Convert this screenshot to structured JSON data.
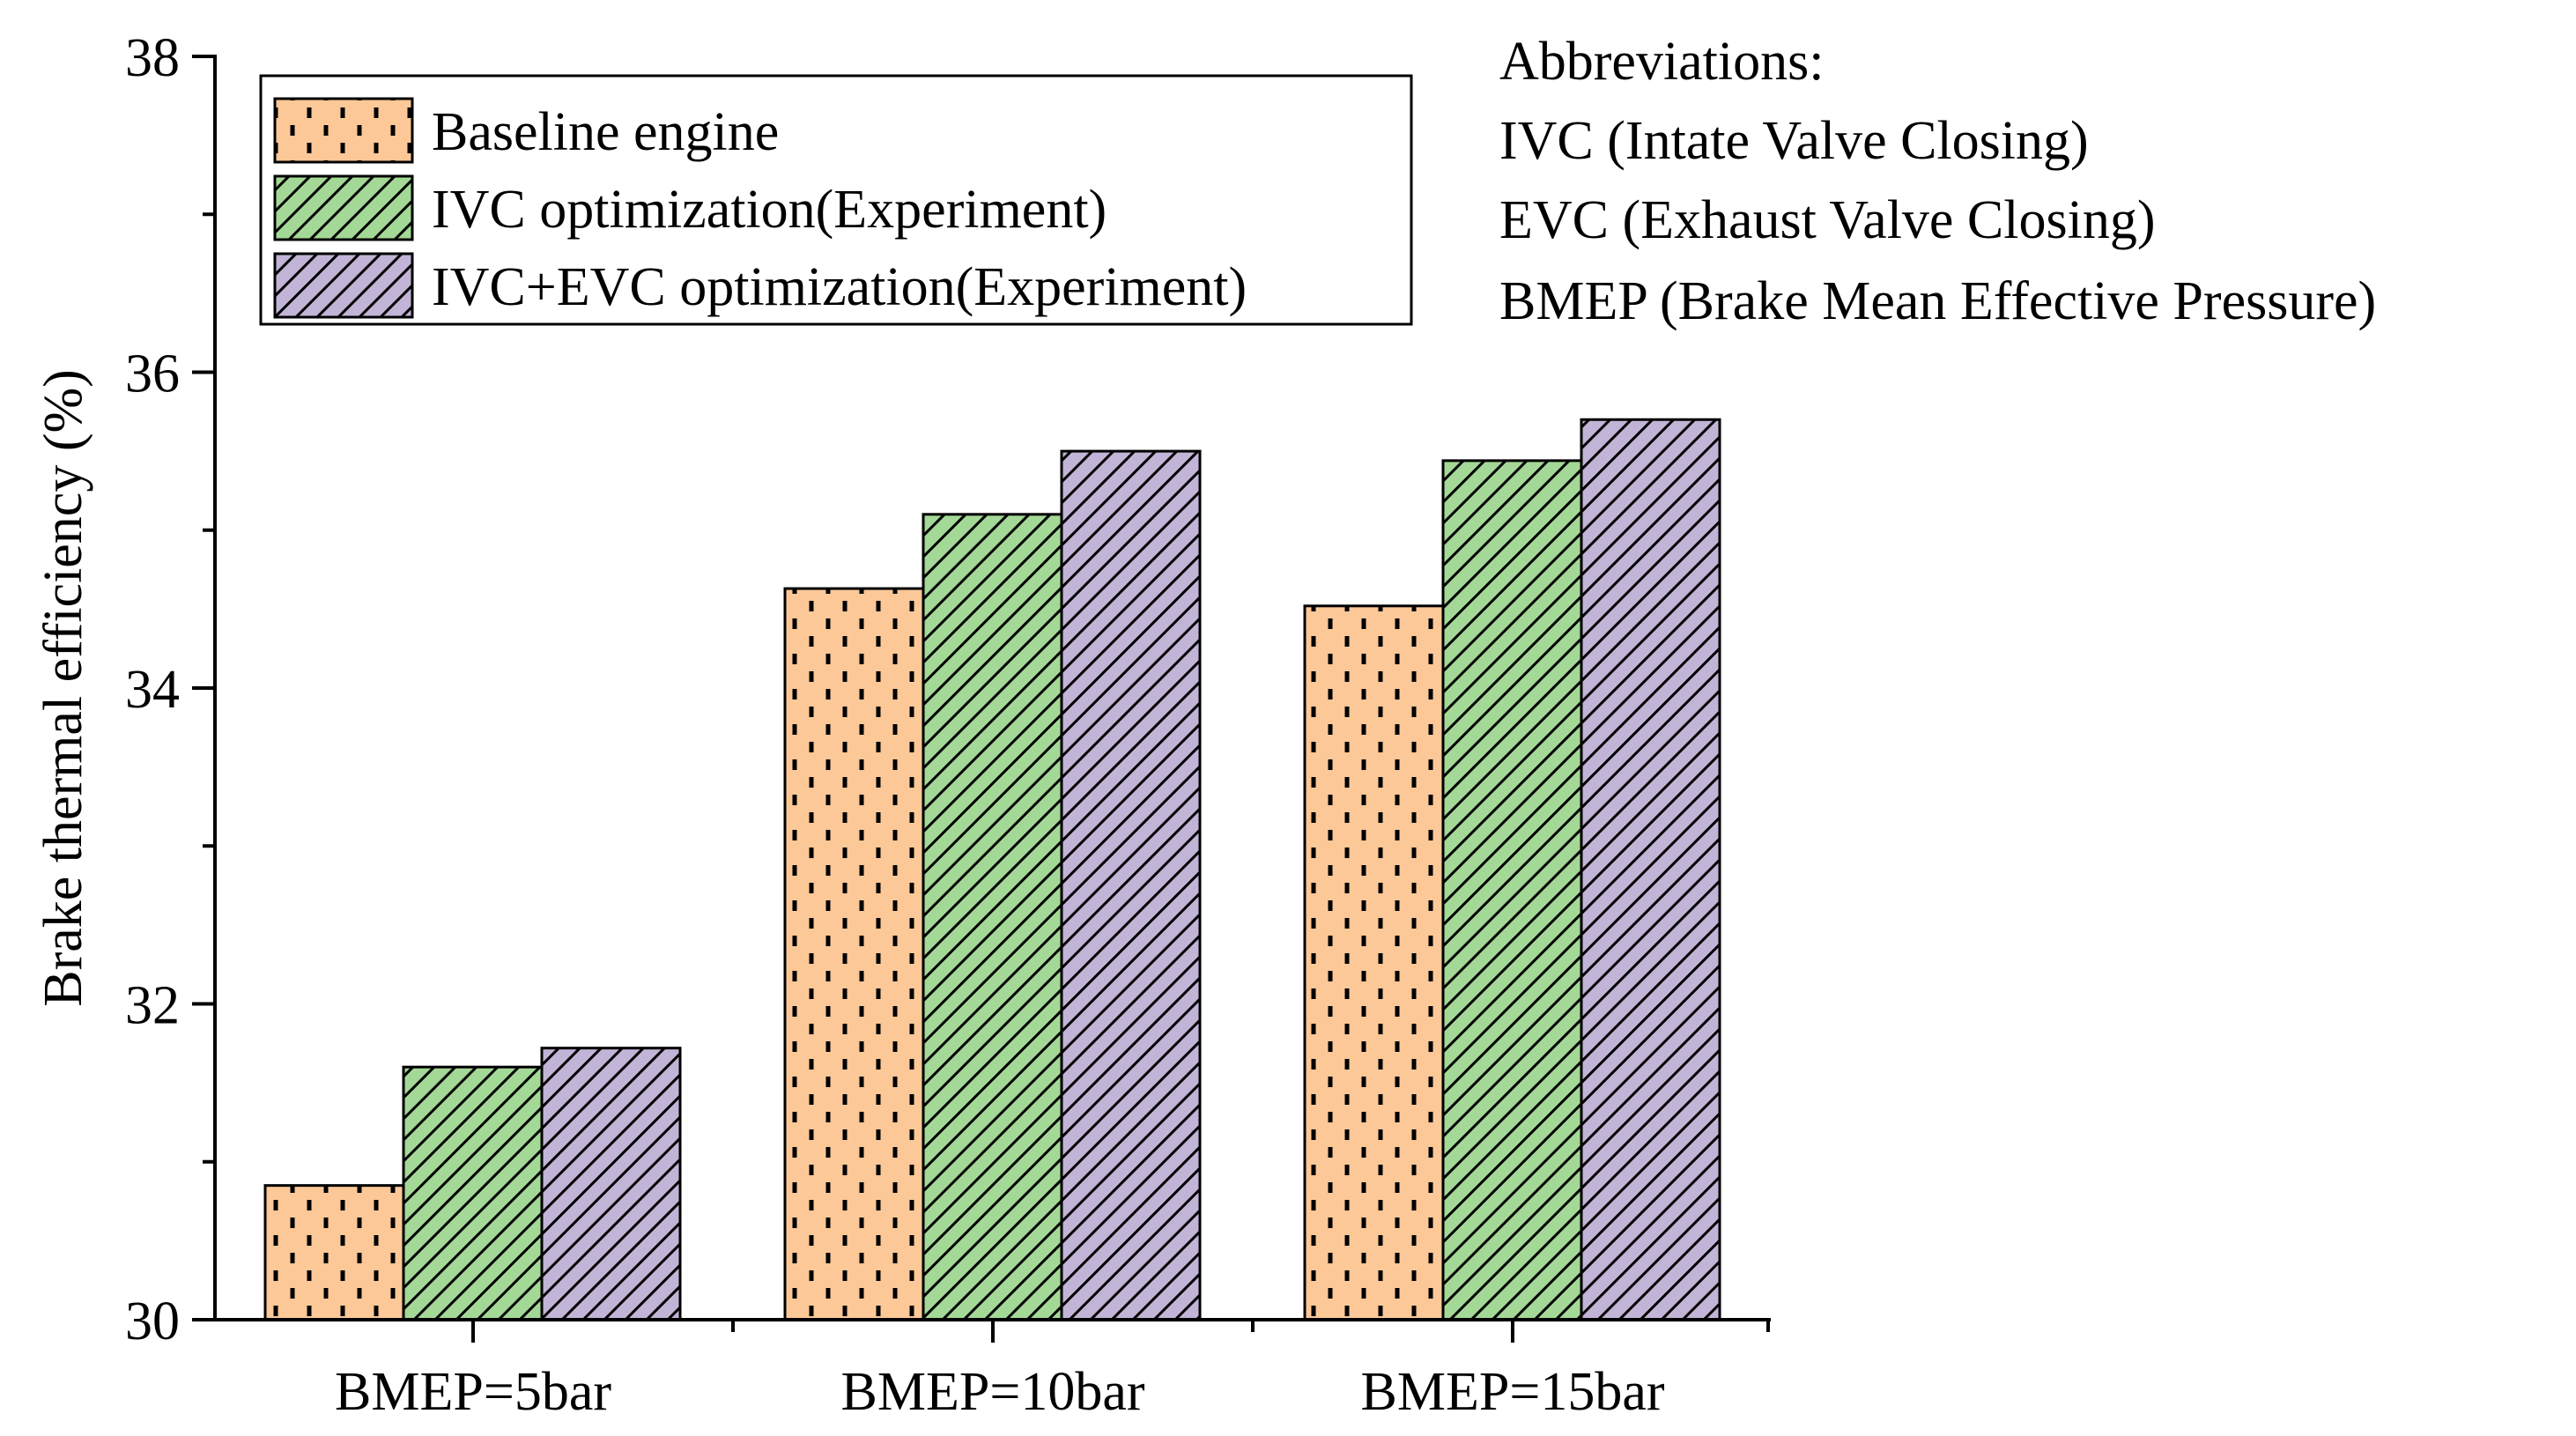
{
  "chart_data": {
    "type": "bar",
    "title": "",
    "xlabel": "",
    "ylabel": "Brake thermal efficiency (%)",
    "ylim": [
      30,
      38
    ],
    "yticks": [
      30,
      32,
      34,
      36,
      38
    ],
    "categories": [
      "BMEP=5bar",
      "BMEP=10bar",
      "BMEP=15bar"
    ],
    "series": [
      {
        "name": "Baseline engine",
        "values": [
          30.85,
          34.63,
          34.52
        ],
        "color": "#fcc898",
        "pattern": "dashes"
      },
      {
        "name": "IVC optimization(Experiment)",
        "values": [
          31.6,
          35.1,
          35.44
        ],
        "color": "#a4d896",
        "pattern": "diagonal"
      },
      {
        "name": "IVC+EVC optimization(Experiment)",
        "values": [
          31.72,
          35.5,
          35.7
        ],
        "color": "#c2b4d6",
        "pattern": "diagonal"
      }
    ],
    "legend_position": "top-left",
    "grid": false,
    "annotations": [
      "Abbreviations:",
      "IVC (Intate Valve Closing)",
      "EVC (Exhaust Valve Closing)",
      "BMEP (Brake Mean Effective Pressure)"
    ]
  }
}
